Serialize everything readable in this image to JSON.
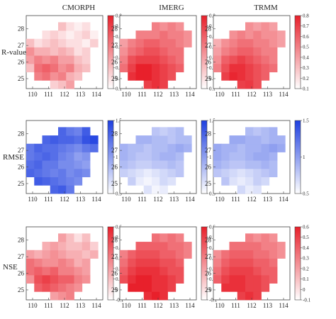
{
  "chart_data": {
    "type": "heatmap",
    "columns": [
      "CMORPH",
      "IMERG",
      "TRMM"
    ],
    "rows": [
      {
        "label": "R-value",
        "colorbar": {
          "min": 0.1,
          "max": 0.8,
          "ticks": [
            "0.8",
            "0.7",
            "0.6",
            "0.5",
            "0.4",
            "0.3",
            "0.2",
            "0.1"
          ],
          "colors": [
            "#ffffff",
            "#e8202b"
          ]
        }
      },
      {
        "label": "RMSE",
        "colorbar": {
          "min": 0.5,
          "max": 1.5,
          "ticks": [
            "1.5",
            "1",
            "0.5"
          ],
          "colors": [
            "#ffffff",
            "#1e3fe0"
          ]
        }
      },
      {
        "label": "NSE",
        "colorbar": {
          "min": -0.1,
          "max": 0.6,
          "ticks": [
            "0.6",
            "0.5",
            "0.4",
            "0.3",
            "0.2",
            "0.1",
            "0",
            "-0.1"
          ],
          "colors": [
            "#ffffff",
            "#e8202b"
          ]
        }
      }
    ],
    "x_ticks": [
      "110",
      "111",
      "112",
      "113",
      "114"
    ],
    "y_ticks": [
      "25",
      "26",
      "27",
      "28"
    ],
    "grid": {
      "x_start": 109.6,
      "y_start": 24.4,
      "cell_deg": 0.5
    },
    "fields": [
      [
        [
          [
            null,
            null,
            null,
            0.25,
            0.3,
            0.4,
            null,
            null,
            null
          ],
          [
            null,
            0.5,
            0.55,
            0.45,
            0.5,
            0.35,
            0.3,
            null,
            null
          ],
          [
            0.3,
            0.55,
            0.6,
            0.55,
            0.45,
            0.5,
            0.35,
            0.3,
            null
          ],
          [
            0.4,
            0.5,
            0.45,
            0.5,
            0.4,
            0.4,
            0.3,
            0.25,
            null
          ],
          [
            0.45,
            0.35,
            0.35,
            0.3,
            0.35,
            0.3,
            0.2,
            0.25,
            null
          ],
          [
            0.3,
            0.2,
            0.25,
            0.3,
            0.25,
            0.2,
            0.2,
            0.15,
            0.25
          ],
          [
            null,
            null,
            0.2,
            0.25,
            0.2,
            0.15,
            0.2,
            0.25,
            0.15
          ],
          [
            null,
            null,
            null,
            null,
            0.3,
            0.2,
            0.15,
            0.2,
            null
          ]
        ],
        [
          [
            null,
            null,
            null,
            0.7,
            0.75,
            0.7,
            null,
            null,
            null
          ],
          [
            null,
            0.75,
            0.8,
            0.8,
            0.75,
            0.7,
            0.65,
            null,
            null
          ],
          [
            0.55,
            0.7,
            0.8,
            0.8,
            0.75,
            0.7,
            0.65,
            0.6,
            null
          ],
          [
            0.5,
            0.65,
            0.7,
            0.7,
            0.7,
            0.65,
            0.6,
            0.55,
            null
          ],
          [
            0.45,
            0.55,
            0.6,
            0.65,
            0.65,
            0.6,
            0.55,
            0.55,
            null
          ],
          [
            0.4,
            0.5,
            0.55,
            0.6,
            0.6,
            0.55,
            0.55,
            0.5,
            0.45
          ],
          [
            null,
            null,
            0.5,
            0.5,
            0.5,
            0.55,
            0.5,
            0.5,
            0.45
          ],
          [
            null,
            null,
            null,
            null,
            0.5,
            0.45,
            0.5,
            0.45,
            null
          ]
        ],
        [
          [
            null,
            null,
            null,
            0.7,
            0.72,
            0.65,
            null,
            null,
            null
          ],
          [
            null,
            0.7,
            0.78,
            0.75,
            0.7,
            0.65,
            0.6,
            null,
            null
          ],
          [
            0.5,
            0.65,
            0.75,
            0.75,
            0.7,
            0.65,
            0.6,
            0.55,
            null
          ],
          [
            0.45,
            0.6,
            0.65,
            0.7,
            0.65,
            0.6,
            0.55,
            0.5,
            null
          ],
          [
            0.4,
            0.5,
            0.55,
            0.6,
            0.6,
            0.55,
            0.5,
            0.5,
            null
          ],
          [
            0.35,
            0.45,
            0.5,
            0.55,
            0.55,
            0.5,
            0.5,
            0.45,
            0.4
          ],
          [
            null,
            null,
            0.45,
            0.5,
            0.45,
            0.5,
            0.45,
            0.45,
            0.4
          ],
          [
            null,
            null,
            null,
            null,
            0.45,
            0.4,
            0.45,
            0.4,
            null
          ]
        ]
      ],
      [
        [
          [
            null,
            null,
            null,
            1.3,
            1.35,
            1.2,
            null,
            null,
            null
          ],
          [
            null,
            1.35,
            1.3,
            1.25,
            1.2,
            1.15,
            1.1,
            null,
            null
          ],
          [
            1.3,
            1.25,
            1.2,
            1.15,
            1.2,
            1.1,
            1.15,
            1.1,
            null
          ],
          [
            1.25,
            1.3,
            1.2,
            1.2,
            1.1,
            1.1,
            1.05,
            1.0,
            null
          ],
          [
            1.2,
            1.25,
            1.3,
            1.25,
            1.15,
            1.1,
            1.0,
            1.05,
            null
          ],
          [
            1.2,
            1.3,
            1.25,
            1.25,
            1.2,
            1.15,
            1.1,
            1.2,
            1.25
          ],
          [
            null,
            null,
            1.3,
            1.35,
            1.3,
            1.3,
            1.25,
            1.4,
            1.45
          ],
          [
            null,
            null,
            null,
            null,
            1.3,
            1.2,
            1.15,
            1.35,
            null
          ]
        ],
        [
          [
            null,
            null,
            null,
            0.65,
            0.55,
            0.6,
            null,
            null,
            null
          ],
          [
            null,
            0.75,
            0.6,
            0.55,
            0.6,
            0.7,
            0.65,
            null,
            null
          ],
          [
            0.75,
            0.7,
            0.65,
            0.6,
            0.65,
            0.7,
            0.75,
            0.8,
            null
          ],
          [
            0.85,
            0.8,
            0.75,
            0.75,
            0.8,
            0.8,
            0.85,
            0.8,
            null
          ],
          [
            0.9,
            0.85,
            0.8,
            0.8,
            0.85,
            0.9,
            0.9,
            0.85,
            null
          ],
          [
            0.9,
            0.85,
            0.85,
            0.8,
            0.85,
            0.85,
            0.9,
            0.95,
            0.9
          ],
          [
            null,
            null,
            0.9,
            0.9,
            0.85,
            0.85,
            0.8,
            0.85,
            0.85
          ],
          [
            null,
            null,
            null,
            null,
            0.8,
            0.75,
            0.8,
            0.85,
            null
          ]
        ],
        [
          [
            null,
            null,
            null,
            0.7,
            0.6,
            0.65,
            null,
            null,
            null
          ],
          [
            null,
            0.8,
            0.65,
            0.6,
            0.65,
            0.75,
            0.7,
            null,
            null
          ],
          [
            0.8,
            0.75,
            0.7,
            0.65,
            0.7,
            0.75,
            0.8,
            0.85,
            null
          ],
          [
            0.9,
            0.85,
            0.8,
            0.8,
            0.85,
            0.85,
            0.9,
            0.85,
            null
          ],
          [
            0.95,
            0.9,
            0.85,
            0.85,
            0.9,
            0.95,
            0.95,
            0.9,
            null
          ],
          [
            0.95,
            0.9,
            0.9,
            0.85,
            0.9,
            0.9,
            0.95,
            1.0,
            0.95
          ],
          [
            null,
            null,
            0.95,
            0.95,
            0.9,
            0.9,
            0.85,
            0.9,
            0.9
          ],
          [
            null,
            null,
            null,
            null,
            0.85,
            0.8,
            0.85,
            0.9,
            null
          ]
        ]
      ],
      [
        [
          [
            null,
            null,
            null,
            0.2,
            0.25,
            0.3,
            null,
            null,
            null
          ],
          [
            null,
            0.4,
            0.45,
            0.4,
            0.35,
            0.3,
            0.25,
            null,
            null
          ],
          [
            0.25,
            0.45,
            0.5,
            0.45,
            0.4,
            0.4,
            0.3,
            0.25,
            null
          ],
          [
            0.35,
            0.4,
            0.35,
            0.4,
            0.3,
            0.3,
            0.25,
            0.2,
            null
          ],
          [
            0.35,
            0.3,
            0.25,
            0.25,
            0.3,
            0.25,
            0.15,
            0.2,
            null
          ],
          [
            0.2,
            0.15,
            0.2,
            0.25,
            0.2,
            0.15,
            0.15,
            0.1,
            0.15
          ],
          [
            null,
            null,
            0.15,
            0.2,
            0.15,
            0.1,
            0.1,
            0.15,
            0.05
          ],
          [
            null,
            null,
            null,
            null,
            0.2,
            0.1,
            0.0,
            0.1,
            null
          ]
        ],
        [
          [
            null,
            null,
            null,
            0.55,
            0.6,
            0.55,
            null,
            null,
            null
          ],
          [
            null,
            0.6,
            0.6,
            0.6,
            0.55,
            0.55,
            0.5,
            null,
            null
          ],
          [
            0.45,
            0.55,
            0.6,
            0.6,
            0.55,
            0.55,
            0.5,
            0.45,
            null
          ],
          [
            0.4,
            0.5,
            0.55,
            0.55,
            0.55,
            0.5,
            0.45,
            0.45,
            null
          ],
          [
            0.35,
            0.45,
            0.5,
            0.5,
            0.5,
            0.45,
            0.45,
            0.4,
            null
          ],
          [
            0.3,
            0.4,
            0.45,
            0.45,
            0.45,
            0.4,
            0.4,
            0.35,
            0.3
          ],
          [
            null,
            null,
            0.4,
            0.4,
            0.4,
            0.4,
            0.35,
            0.35,
            0.3
          ],
          [
            null,
            null,
            null,
            null,
            0.35,
            0.3,
            0.35,
            0.3,
            null
          ]
        ],
        [
          [
            null,
            null,
            null,
            0.5,
            0.55,
            0.5,
            null,
            null,
            null
          ],
          [
            null,
            0.55,
            0.55,
            0.55,
            0.5,
            0.5,
            0.45,
            null,
            null
          ],
          [
            0.4,
            0.5,
            0.55,
            0.55,
            0.5,
            0.5,
            0.45,
            0.4,
            null
          ],
          [
            0.35,
            0.45,
            0.5,
            0.5,
            0.5,
            0.45,
            0.4,
            0.4,
            null
          ],
          [
            0.3,
            0.4,
            0.45,
            0.45,
            0.45,
            0.4,
            0.4,
            0.35,
            null
          ],
          [
            0.25,
            0.35,
            0.4,
            0.4,
            0.4,
            0.35,
            0.35,
            0.3,
            0.25
          ],
          [
            null,
            null,
            0.35,
            0.35,
            0.35,
            0.35,
            0.3,
            0.3,
            0.25
          ],
          [
            null,
            null,
            null,
            null,
            0.3,
            0.25,
            0.3,
            0.25,
            null
          ]
        ]
      ]
    ]
  }
}
